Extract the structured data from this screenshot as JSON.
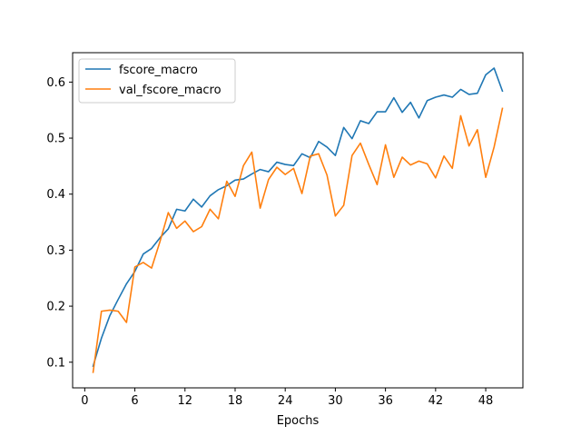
{
  "chart_data": {
    "type": "line",
    "title": "",
    "xlabel": "Epochs",
    "ylabel": "",
    "xlim": [
      -1.45,
      52.45
    ],
    "ylim": [
      0.0542,
      0.6525
    ],
    "xticks": [
      0,
      6,
      12,
      18,
      24,
      30,
      36,
      42,
      48
    ],
    "xtick_labels": [
      "0",
      "6",
      "12",
      "18",
      "24",
      "30",
      "36",
      "42",
      "48"
    ],
    "yticks": [
      0.1,
      0.2,
      0.3,
      0.4,
      0.5,
      0.6
    ],
    "ytick_labels": [
      "0.1",
      "0.2",
      "0.3",
      "0.4",
      "0.5",
      "0.6"
    ],
    "grid": false,
    "legend": "upper-left",
    "x": [
      1,
      2,
      3,
      4,
      5,
      6,
      7,
      8,
      9,
      10,
      11,
      12,
      13,
      14,
      15,
      16,
      17,
      18,
      19,
      20,
      21,
      22,
      23,
      24,
      25,
      26,
      27,
      28,
      29,
      30,
      31,
      32,
      33,
      34,
      35,
      36,
      37,
      38,
      39,
      40,
      41,
      42,
      43,
      44,
      45,
      46,
      47,
      48,
      49,
      50
    ],
    "series": [
      {
        "name": "fscore_macro",
        "color": "#1f77b4",
        "values": [
          0.093,
          0.143,
          0.183,
          0.212,
          0.24,
          0.262,
          0.293,
          0.303,
          0.322,
          0.338,
          0.373,
          0.37,
          0.391,
          0.377,
          0.397,
          0.408,
          0.415,
          0.425,
          0.427,
          0.436,
          0.444,
          0.44,
          0.457,
          0.453,
          0.451,
          0.472,
          0.465,
          0.494,
          0.484,
          0.469,
          0.519,
          0.499,
          0.531,
          0.526,
          0.547,
          0.547,
          0.572,
          0.546,
          0.564,
          0.536,
          0.567,
          0.573,
          0.577,
          0.573,
          0.587,
          0.578,
          0.58,
          0.613,
          0.625,
          0.584
        ]
      },
      {
        "name": "val_fscore_macro",
        "color": "#ff7f0e",
        "values": [
          0.082,
          0.191,
          0.193,
          0.191,
          0.171,
          0.27,
          0.278,
          0.268,
          0.315,
          0.367,
          0.339,
          0.352,
          0.333,
          0.342,
          0.373,
          0.356,
          0.423,
          0.396,
          0.451,
          0.475,
          0.375,
          0.426,
          0.448,
          0.435,
          0.446,
          0.401,
          0.468,
          0.472,
          0.434,
          0.361,
          0.38,
          0.469,
          0.491,
          0.453,
          0.417,
          0.488,
          0.43,
          0.466,
          0.452,
          0.459,
          0.454,
          0.429,
          0.468,
          0.446,
          0.54,
          0.486,
          0.515,
          0.43,
          0.484,
          0.553
        ]
      }
    ]
  }
}
